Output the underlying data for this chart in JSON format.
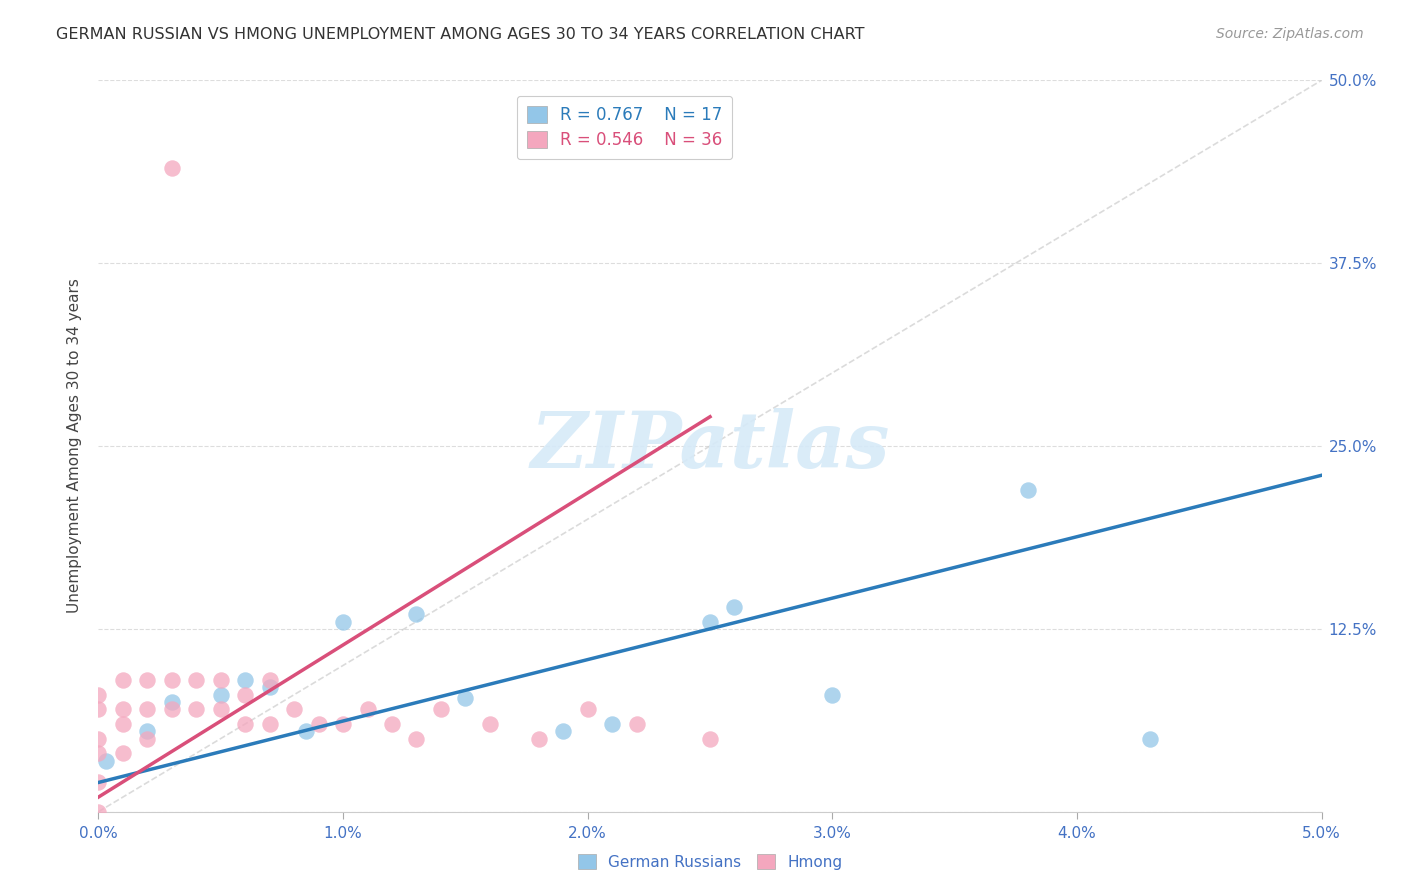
{
  "title": "GERMAN RUSSIAN VS HMONG UNEMPLOYMENT AMONG AGES 30 TO 34 YEARS CORRELATION CHART",
  "source": "Source: ZipAtlas.com",
  "ylabel": "Unemployment Among Ages 30 to 34 years",
  "xlim": [
    0.0,
    0.05
  ],
  "ylim": [
    0.0,
    0.5
  ],
  "xticks": [
    0.0,
    0.01,
    0.02,
    0.03,
    0.04,
    0.05
  ],
  "xtick_labels": [
    "0.0%",
    "1.0%",
    "2.0%",
    "3.0%",
    "4.0%",
    "5.0%"
  ],
  "yticks": [
    0.0,
    0.125,
    0.25,
    0.375,
    0.5
  ],
  "ytick_labels": [
    "",
    "12.5%",
    "25.0%",
    "37.5%",
    "50.0%"
  ],
  "legend_r1": "R = 0.767",
  "legend_n1": "N = 17",
  "legend_r2": "R = 0.546",
  "legend_n2": "N = 36",
  "blue_dot_color": "#93c6e8",
  "pink_dot_color": "#f4a7be",
  "blue_line_color": "#2b7bba",
  "pink_line_color": "#d94f7a",
  "diag_line_color": "#cccccc",
  "grid_color": "#dddddd",
  "tick_label_color": "#4472c4",
  "title_color": "#333333",
  "source_color": "#999999",
  "watermark_color": "#d6eaf8",
  "gr_x": [
    0.0003,
    0.002,
    0.003,
    0.005,
    0.006,
    0.007,
    0.0085,
    0.01,
    0.013,
    0.015,
    0.019,
    0.021,
    0.025,
    0.026,
    0.03,
    0.038,
    0.043
  ],
  "gr_y": [
    0.035,
    0.055,
    0.075,
    0.08,
    0.09,
    0.085,
    0.055,
    0.13,
    0.135,
    0.078,
    0.055,
    0.06,
    0.13,
    0.14,
    0.08,
    0.22,
    0.05
  ],
  "hm_x": [
    0.0,
    0.0,
    0.0,
    0.0,
    0.0,
    0.0,
    0.001,
    0.001,
    0.001,
    0.001,
    0.002,
    0.002,
    0.002,
    0.003,
    0.003,
    0.003,
    0.004,
    0.004,
    0.005,
    0.005,
    0.006,
    0.006,
    0.007,
    0.007,
    0.008,
    0.009,
    0.01,
    0.011,
    0.012,
    0.013,
    0.014,
    0.016,
    0.018,
    0.02,
    0.022,
    0.025
  ],
  "hm_y": [
    0.0,
    0.02,
    0.04,
    0.05,
    0.07,
    0.08,
    0.04,
    0.06,
    0.07,
    0.09,
    0.05,
    0.07,
    0.09,
    0.07,
    0.09,
    0.44,
    0.07,
    0.09,
    0.07,
    0.09,
    0.06,
    0.08,
    0.06,
    0.09,
    0.07,
    0.06,
    0.06,
    0.07,
    0.06,
    0.05,
    0.07,
    0.06,
    0.05,
    0.07,
    0.06,
    0.05
  ],
  "hm_line_x0": 0.0,
  "hm_line_x1": 0.025,
  "hm_line_y0": 0.01,
  "hm_line_y1": 0.27,
  "gr_line_x0": 0.0,
  "gr_line_x1": 0.05,
  "gr_line_y0": 0.02,
  "gr_line_y1": 0.23
}
